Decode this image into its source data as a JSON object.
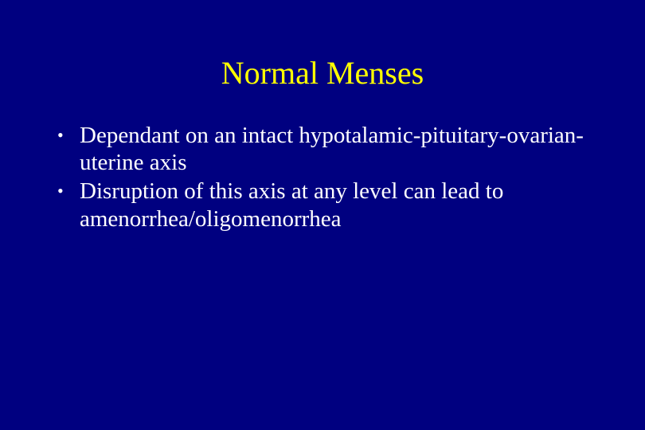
{
  "slide": {
    "background_color": "#000080",
    "title": {
      "text": "Normal Menses",
      "color": "#ffff00",
      "font_family": "Times New Roman",
      "font_size_pt": 40
    },
    "body": {
      "color": "#ffffff",
      "font_family": "Times New Roman",
      "font_size_pt": 29,
      "bullet_char": "•",
      "items": [
        {
          "text": "Dependant on an intact hypotalamic-pituitary-ovarian-uterine axis"
        },
        {
          "text": "Disruption of this axis at any level can lead to amenorrhea/oligomenorrhea"
        }
      ]
    }
  }
}
